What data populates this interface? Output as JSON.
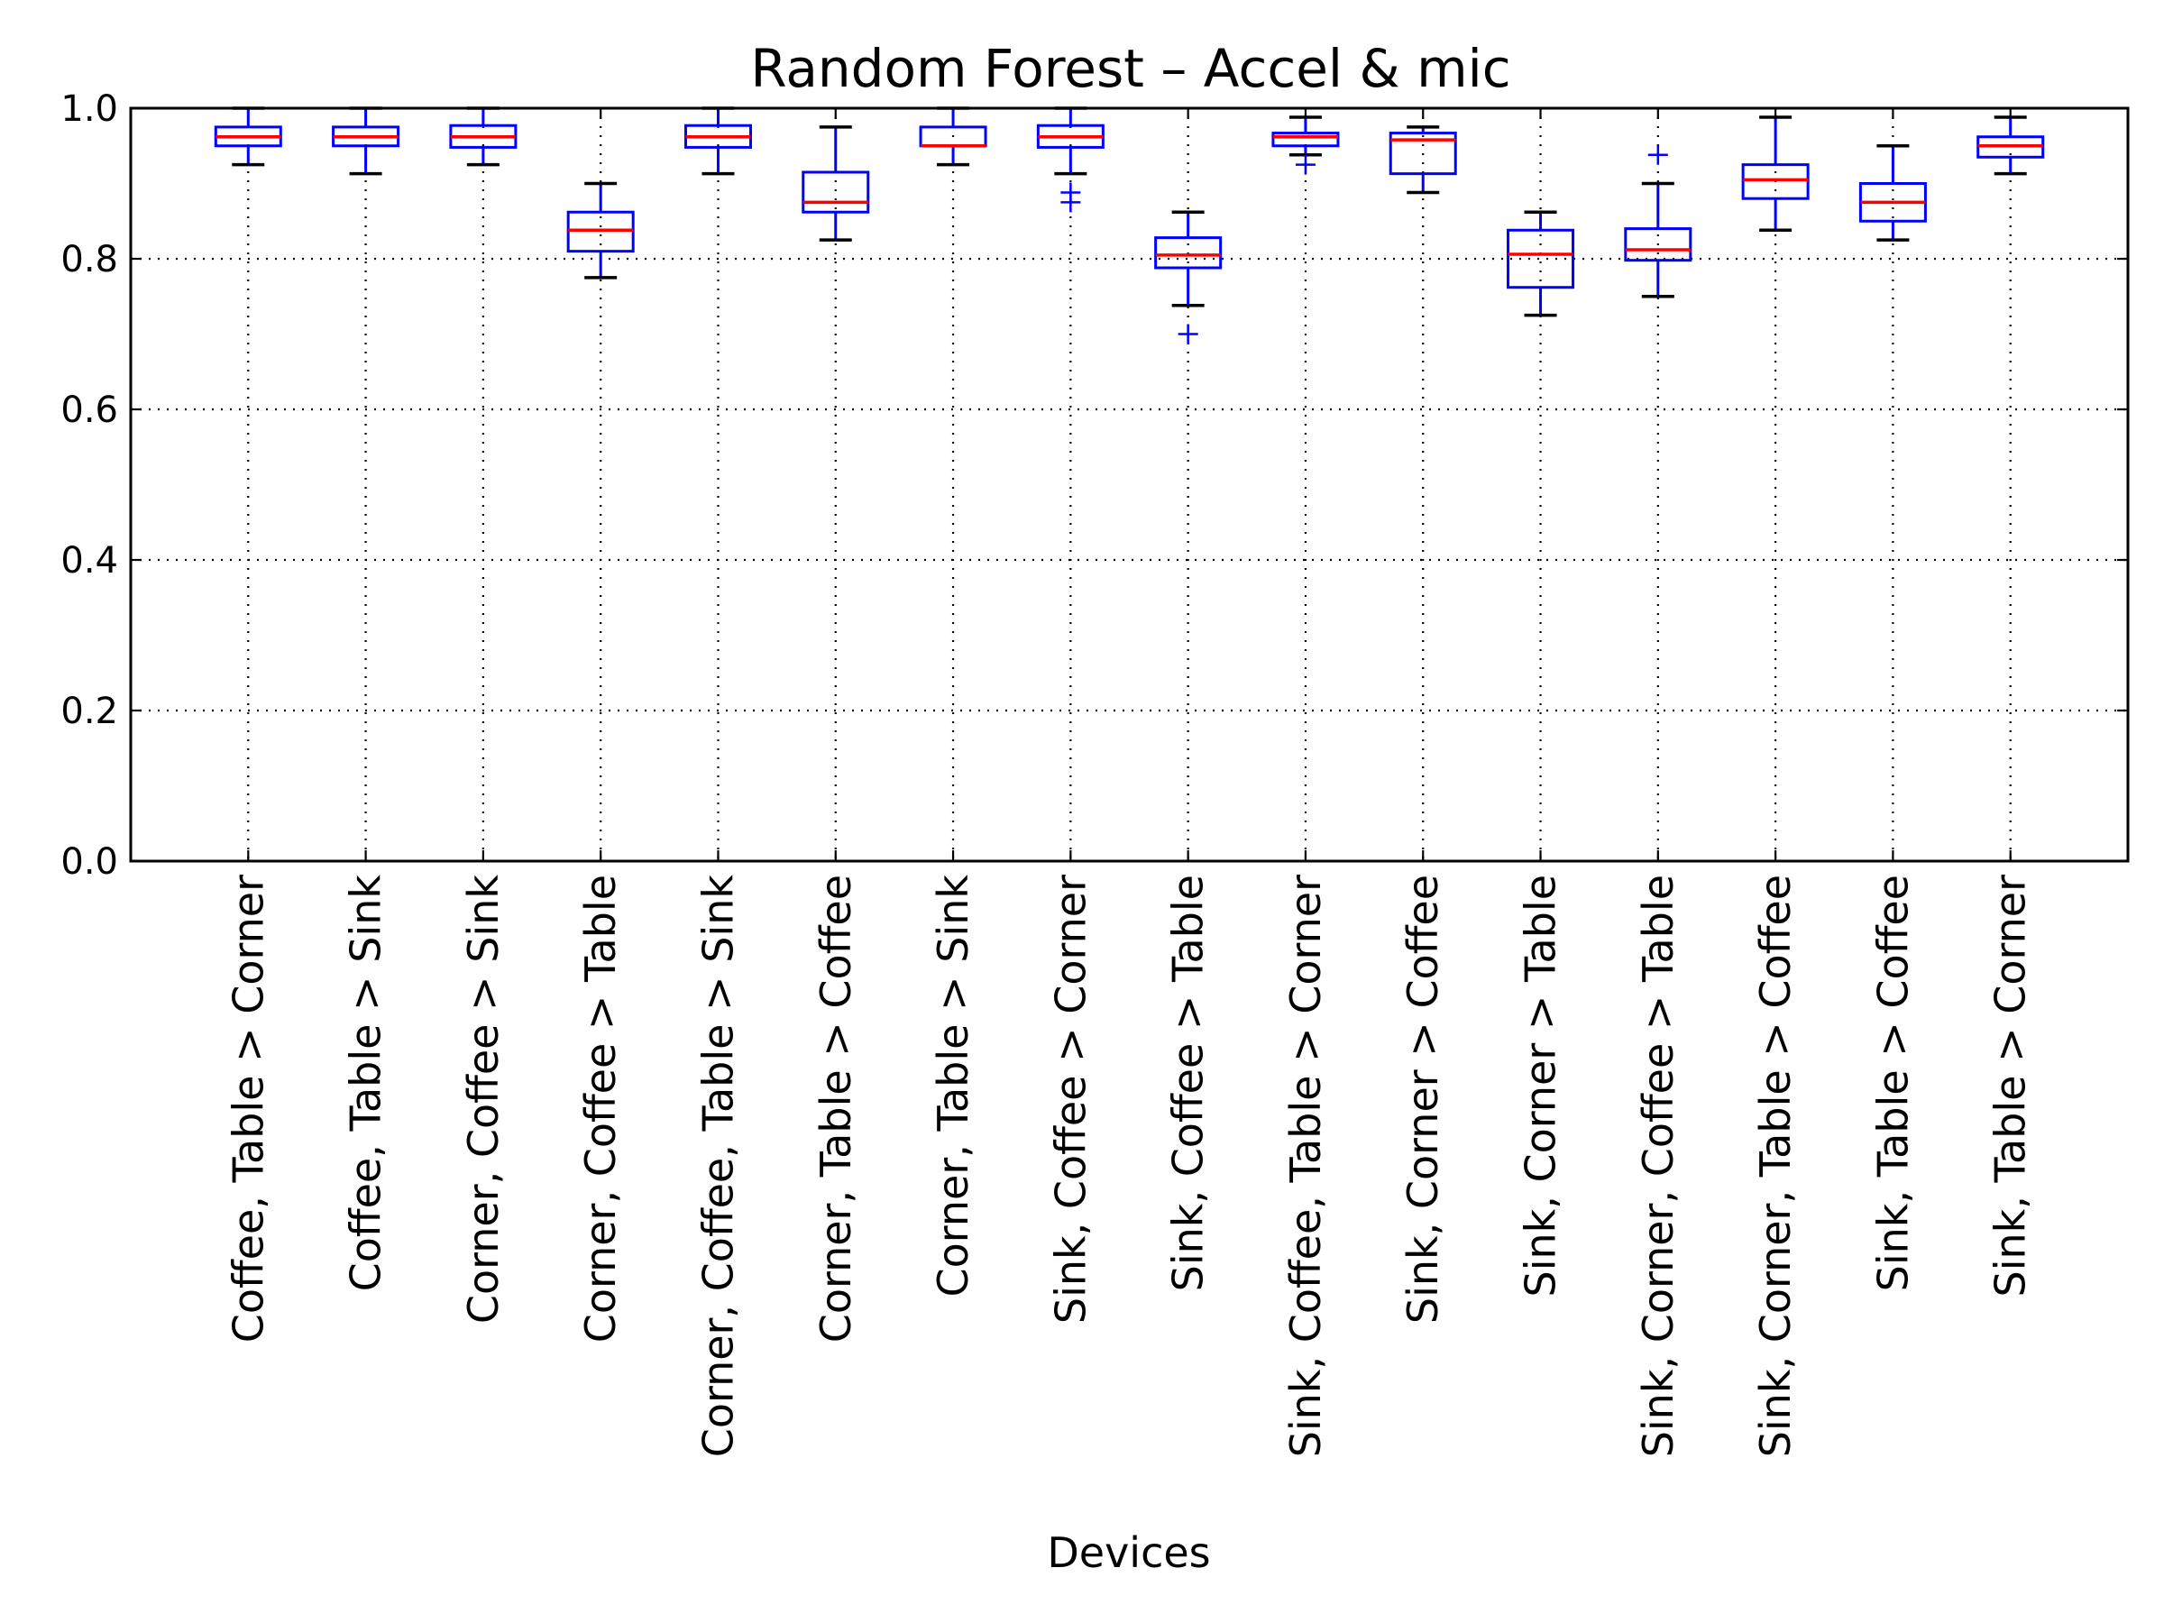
{
  "chart_data": {
    "type": "boxplot",
    "title": "Random Forest – Accel & mic",
    "xlabel": "Devices",
    "ylabel": "",
    "ylim": [
      0.0,
      1.0
    ],
    "yticks": [
      "0.0",
      "0.2",
      "0.4",
      "0.6",
      "0.8",
      "1.0"
    ],
    "grid": true,
    "colors": {
      "box": "#0000ff",
      "median": "#ff0000",
      "cap": "#000000",
      "flier": "#0000ff"
    },
    "categories": [
      "Coffee, Table > Corner",
      "Coffee, Table > Sink",
      "Corner, Coffee > Sink",
      "Corner, Coffee > Table",
      "Corner, Coffee, Table > Sink",
      "Corner, Table > Coffee",
      "Corner, Table > Sink",
      "Sink, Coffee > Corner",
      "Sink, Coffee > Table",
      "Sink, Coffee, Table > Corner",
      "Sink, Corner > Coffee",
      "Sink, Corner > Table",
      "Sink, Corner, Coffee > Table",
      "Sink, Corner, Table > Coffee",
      "Sink, Table > Coffee",
      "Sink, Table > Corner"
    ],
    "boxes": [
      {
        "whislo": 0.925,
        "q1": 0.95,
        "med": 0.962,
        "q3": 0.975,
        "whishi": 1.0,
        "fliers": []
      },
      {
        "whislo": 0.913,
        "q1": 0.95,
        "med": 0.962,
        "q3": 0.975,
        "whishi": 1.0,
        "fliers": []
      },
      {
        "whislo": 0.925,
        "q1": 0.948,
        "med": 0.962,
        "q3": 0.977,
        "whishi": 1.0,
        "fliers": []
      },
      {
        "whislo": 0.775,
        "q1": 0.81,
        "med": 0.838,
        "q3": 0.862,
        "whishi": 0.9,
        "fliers": []
      },
      {
        "whislo": 0.913,
        "q1": 0.948,
        "med": 0.962,
        "q3": 0.977,
        "whishi": 1.0,
        "fliers": []
      },
      {
        "whislo": 0.825,
        "q1": 0.862,
        "med": 0.875,
        "q3": 0.915,
        "whishi": 0.975,
        "fliers": []
      },
      {
        "whislo": 0.925,
        "q1": 0.95,
        "med": 0.95,
        "q3": 0.975,
        "whishi": 1.0,
        "fliers": []
      },
      {
        "whislo": 0.913,
        "q1": 0.948,
        "med": 0.962,
        "q3": 0.977,
        "whishi": 1.0,
        "fliers": [
          0.875,
          0.888
        ]
      },
      {
        "whislo": 0.738,
        "q1": 0.788,
        "med": 0.805,
        "q3": 0.828,
        "whishi": 0.862,
        "fliers": [
          0.7
        ]
      },
      {
        "whislo": 0.938,
        "q1": 0.95,
        "med": 0.962,
        "q3": 0.967,
        "whishi": 0.988,
        "fliers": [
          0.925
        ]
      },
      {
        "whislo": 0.888,
        "q1": 0.913,
        "med": 0.958,
        "q3": 0.967,
        "whishi": 0.975,
        "fliers": []
      },
      {
        "whislo": 0.725,
        "q1": 0.762,
        "med": 0.806,
        "q3": 0.838,
        "whishi": 0.862,
        "fliers": []
      },
      {
        "whislo": 0.75,
        "q1": 0.798,
        "med": 0.812,
        "q3": 0.84,
        "whishi": 0.9,
        "fliers": [
          0.938
        ]
      },
      {
        "whislo": 0.838,
        "q1": 0.88,
        "med": 0.905,
        "q3": 0.925,
        "whishi": 0.988,
        "fliers": []
      },
      {
        "whislo": 0.825,
        "q1": 0.85,
        "med": 0.875,
        "q3": 0.9,
        "whishi": 0.95,
        "fliers": []
      },
      {
        "whislo": 0.913,
        "q1": 0.935,
        "med": 0.95,
        "q3": 0.962,
        "whishi": 0.988,
        "fliers": []
      }
    ]
  }
}
